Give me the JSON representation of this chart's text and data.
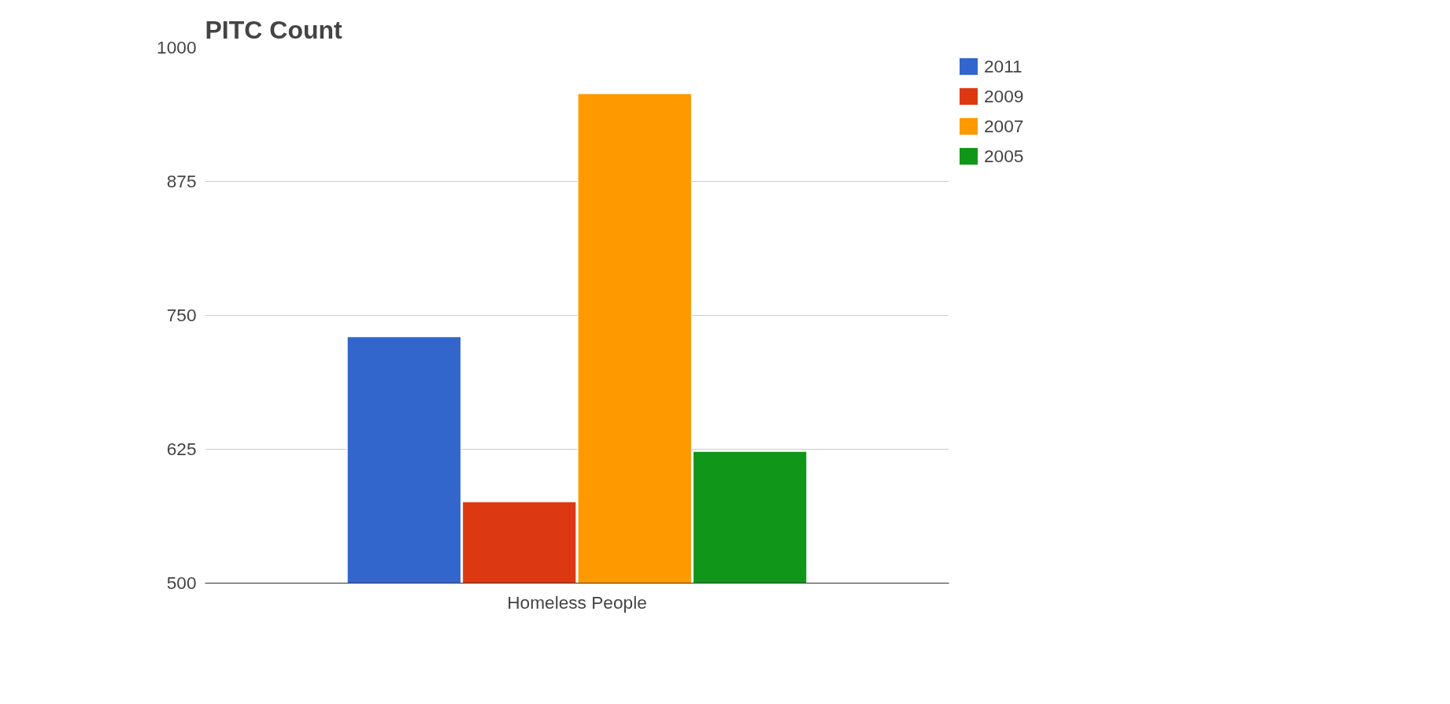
{
  "chart_data": {
    "type": "bar",
    "title": "PITC Count",
    "categories": [
      "Homeless People"
    ],
    "series": [
      {
        "name": "2011",
        "color": "#3366cc",
        "values": [
          730
        ]
      },
      {
        "name": "2009",
        "color": "#dc3912",
        "values": [
          576
        ]
      },
      {
        "name": "2007",
        "color": "#ff9900",
        "values": [
          957
        ]
      },
      {
        "name": "2005",
        "color": "#109618",
        "values": [
          623
        ]
      }
    ],
    "ylim": [
      500,
      1000
    ],
    "yticks": [
      500,
      625,
      750,
      875,
      1000
    ],
    "grid": "y",
    "legend": "top right"
  }
}
